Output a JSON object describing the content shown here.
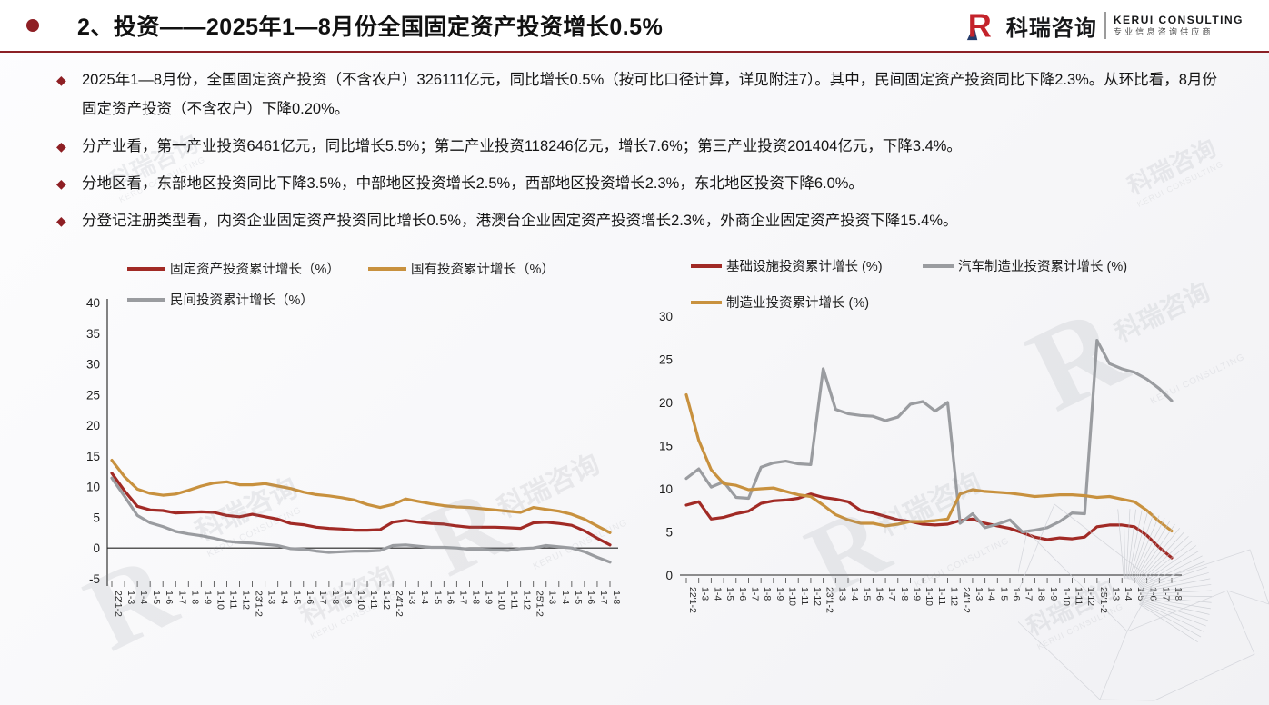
{
  "header": {
    "title": "2、投资——2025年1—8月份全国固定资产投资增长0.5%",
    "logo": {
      "mark": "R",
      "name_cn": "科瑞咨询",
      "name_en": "KERUI CONSULTING",
      "tagline": "专业信息咨询供应商"
    }
  },
  "accent_color": "#8E1F24",
  "bullets": [
    "2025年1—8月份，全国固定资产投资（不含农户）326111亿元，同比增长0.5%（按可比口径计算，详见附注7）。其中，民间固定资产投资同比下降2.3%。从环比看，8月份固定资产投资（不含农户）下降0.20%。",
    "分产业看，第一产业投资6461亿元，同比增长5.5%；第二产业投资118246亿元，增长7.6%；第三产业投资201404亿元，下降3.4%。",
    "分地区看，东部地区投资同比下降3.5%，中部地区投资增长2.5%，西部地区投资增长2.3%，东北地区投资下降6.0%。",
    "分登记注册类型看，内资企业固定资产投资同比增长0.5%，港澳台企业固定资产投资增长2.3%，外商企业固定资产投资下降15.4%。"
  ],
  "watermark": {
    "glyph": "R",
    "text_cn": "科瑞咨询",
    "text_en": "KERUI CONSULTING"
  },
  "chart_data": [
    {
      "id": "chart-left",
      "type": "line",
      "title": "",
      "categories": [
        "22'1-2",
        "1-3",
        "1-4",
        "1-5",
        "1-6",
        "1-7",
        "1-8",
        "1-9",
        "1-10",
        "1-11",
        "1-12",
        "23'1-2",
        "1-3",
        "1-4",
        "1-5",
        "1-6",
        "1-7",
        "1-8",
        "1-9",
        "1-10",
        "1-11",
        "1-12",
        "24'1-2",
        "1-3",
        "1-4",
        "1-5",
        "1-6",
        "1-7",
        "1-8",
        "1-9",
        "1-10",
        "1-11",
        "1-12",
        "25'1-2",
        "1-3",
        "1-4",
        "1-5",
        "1-6",
        "1-7",
        "1-8"
      ],
      "ylim": [
        -5,
        40
      ],
      "yticks": [
        40,
        35,
        30,
        25,
        20,
        15,
        10,
        5,
        0,
        -5
      ],
      "grid": false,
      "legend_position": "top",
      "series": [
        {
          "name": "固定资产投资累计增长（%）",
          "color": "#A12A25",
          "values": [
            12.2,
            9.3,
            6.8,
            6.2,
            6.1,
            5.7,
            5.8,
            5.9,
            5.8,
            5.3,
            5.1,
            5.5,
            5.1,
            4.7,
            4.0,
            3.8,
            3.4,
            3.2,
            3.1,
            2.9,
            2.9,
            3.0,
            4.2,
            4.5,
            4.2,
            4.0,
            3.9,
            3.6,
            3.4,
            3.4,
            3.4,
            3.3,
            3.2,
            4.1,
            4.2,
            4.0,
            3.7,
            2.8,
            1.6,
            0.5
          ]
        },
        {
          "name": "国有投资累计增长（%）",
          "color": "#C8913E",
          "values": [
            14.3,
            11.6,
            9.6,
            8.9,
            8.6,
            8.8,
            9.4,
            10.1,
            10.6,
            10.8,
            10.3,
            10.3,
            10.5,
            10.1,
            9.7,
            9.1,
            8.7,
            8.5,
            8.2,
            7.8,
            7.1,
            6.6,
            7.1,
            8.0,
            7.6,
            7.2,
            6.9,
            6.7,
            6.6,
            6.4,
            6.2,
            6.0,
            5.8,
            6.6,
            6.3,
            6.0,
            5.5,
            4.7,
            3.6,
            2.5
          ]
        },
        {
          "name": "民间投资累计增长（%）",
          "color": "#9A9CA0",
          "values": [
            11.4,
            8.4,
            5.3,
            4.1,
            3.5,
            2.7,
            2.3,
            2.0,
            1.6,
            1.1,
            0.9,
            0.8,
            0.6,
            0.4,
            -0.1,
            -0.2,
            -0.5,
            -0.7,
            -0.6,
            -0.5,
            -0.5,
            -0.4,
            0.4,
            0.5,
            0.3,
            0.1,
            0.1,
            0.0,
            -0.2,
            -0.2,
            -0.3,
            -0.4,
            -0.1,
            0.0,
            0.4,
            0.2,
            0.0,
            -0.6,
            -1.5,
            -2.3
          ]
        }
      ]
    },
    {
      "id": "chart-right",
      "type": "line",
      "title": "",
      "categories": [
        "22'1-2",
        "1-3",
        "1-4",
        "1-5",
        "1-6",
        "1-7",
        "1-8",
        "1-9",
        "1-10",
        "1-11",
        "1-12",
        "23'1-2",
        "1-3",
        "1-4",
        "1-5",
        "1-6",
        "1-7",
        "1-8",
        "1-9",
        "1-10",
        "1-11",
        "1-12",
        "24'1-2",
        "1-3",
        "1-4",
        "1-5",
        "1-6",
        "1-7",
        "1-8",
        "1-9",
        "1-10",
        "1-11",
        "1-12",
        "25'1-2",
        "1-3",
        "1-4",
        "1-5",
        "1-6",
        "1-7",
        "1-8"
      ],
      "ylim": [
        0,
        30
      ],
      "yticks": [
        30,
        25,
        20,
        15,
        10,
        5,
        0
      ],
      "grid": false,
      "legend_position": "top",
      "series": [
        {
          "name": "基础设施投资累计增长 (%)",
          "color": "#A12A25",
          "values": [
            8.1,
            8.5,
            6.5,
            6.7,
            7.1,
            7.4,
            8.3,
            8.6,
            8.7,
            8.9,
            9.4,
            9.0,
            8.8,
            8.5,
            7.5,
            7.2,
            6.8,
            6.4,
            6.2,
            5.9,
            5.8,
            5.9,
            6.3,
            6.5,
            6.0,
            5.7,
            5.4,
            4.9,
            4.4,
            4.1,
            4.3,
            4.2,
            4.4,
            5.6,
            5.8,
            5.8,
            5.6,
            4.6,
            3.2,
            2.0
          ]
        },
        {
          "name": "汽车制造业投资累计增长 (%)",
          "color": "#9A9CA0",
          "values": [
            11.2,
            12.3,
            10.2,
            10.8,
            9.0,
            8.9,
            12.5,
            13.0,
            13.2,
            12.9,
            12.8,
            23.9,
            19.2,
            18.7,
            18.5,
            18.4,
            17.9,
            18.3,
            19.8,
            20.1,
            19.0,
            20.0,
            6.0,
            7.1,
            5.5,
            5.9,
            6.4,
            5.0,
            5.2,
            5.5,
            6.2,
            7.2,
            7.1,
            27.2,
            24.5,
            23.9,
            23.5,
            22.7,
            21.6,
            20.2
          ]
        },
        {
          "name": "制造业投资累计增长 (%)",
          "color": "#C8913E",
          "values": [
            20.9,
            15.6,
            12.2,
            10.6,
            10.4,
            9.9,
            10.0,
            10.1,
            9.7,
            9.3,
            9.1,
            8.1,
            7.0,
            6.4,
            6.0,
            6.0,
            5.7,
            5.9,
            6.2,
            6.2,
            6.3,
            6.5,
            9.4,
            9.9,
            9.7,
            9.6,
            9.5,
            9.3,
            9.1,
            9.2,
            9.3,
            9.3,
            9.2,
            9.0,
            9.1,
            8.8,
            8.5,
            7.5,
            6.2,
            5.1
          ]
        }
      ]
    }
  ]
}
